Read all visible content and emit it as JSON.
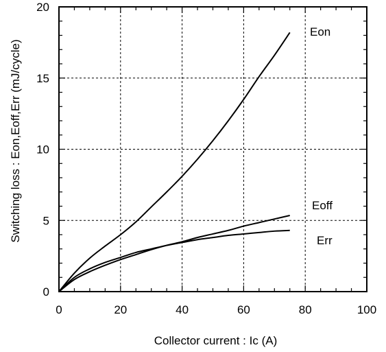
{
  "chart_data": {
    "type": "line",
    "title": "",
    "xlabel": "Collector current : Ic  (A)",
    "ylabel": "Switching loss : Eon,Eoff,Err  (mJ/cycle)",
    "xlim": [
      0,
      100
    ],
    "ylim": [
      0,
      20
    ],
    "xticks": [
      0,
      20,
      40,
      60,
      80,
      100
    ],
    "yticks": [
      0,
      5,
      10,
      15,
      20
    ],
    "xtick_labels": [
      "0",
      "20",
      "40",
      "60",
      "80",
      "100"
    ],
    "ytick_labels": [
      "0",
      "5",
      "10",
      "15",
      "20"
    ],
    "grid": true,
    "legend": "labels-at-curve-ends",
    "series": [
      {
        "name": "Eon",
        "x": [
          0,
          5,
          10,
          15,
          20,
          25,
          30,
          35,
          40,
          45,
          50,
          55,
          60,
          65,
          70,
          75
        ],
        "y": [
          0,
          1.3,
          2.35,
          3.2,
          4.0,
          4.9,
          5.95,
          7.0,
          8.1,
          9.3,
          10.6,
          12.0,
          13.5,
          15.1,
          16.6,
          18.2
        ]
      },
      {
        "name": "Eoff",
        "x": [
          0,
          5,
          10,
          15,
          20,
          25,
          30,
          35,
          40,
          45,
          50,
          55,
          60,
          65,
          70,
          75
        ],
        "y": [
          0,
          0.85,
          1.4,
          1.85,
          2.25,
          2.6,
          2.95,
          3.25,
          3.5,
          3.8,
          4.05,
          4.3,
          4.6,
          4.85,
          5.1,
          5.35
        ]
      },
      {
        "name": "Err",
        "x": [
          0,
          5,
          10,
          15,
          20,
          25,
          30,
          35,
          40,
          45,
          50,
          55,
          60,
          65,
          70,
          75
        ],
        "y": [
          0,
          1.0,
          1.6,
          2.05,
          2.4,
          2.75,
          3.0,
          3.25,
          3.45,
          3.65,
          3.8,
          3.95,
          4.05,
          4.15,
          4.25,
          4.3
        ]
      }
    ]
  }
}
